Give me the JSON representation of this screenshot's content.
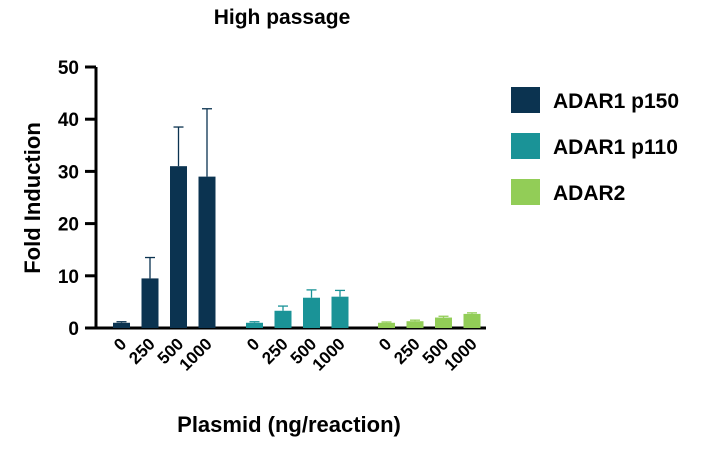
{
  "chart_data": {
    "type": "bar",
    "title": "High passage",
    "xlabel": "Plasmid (ng/reaction)",
    "ylabel": "Fold Induction",
    "ylim": [
      0,
      50
    ],
    "yticks": [
      0,
      10,
      20,
      30,
      40,
      50
    ],
    "categories": [
      "0",
      "250",
      "500",
      "1000"
    ],
    "legend_position": "right",
    "series": [
      {
        "name": "ADAR1 p150",
        "color": "#0b3350",
        "values": [
          1.0,
          9.5,
          31.0,
          29.0
        ],
        "errors": [
          0.2,
          4.0,
          7.5,
          13.0
        ]
      },
      {
        "name": "ADAR1 p110",
        "color": "#1a9397",
        "values": [
          1.0,
          3.3,
          5.8,
          6.0
        ],
        "errors": [
          0.2,
          0.9,
          1.5,
          1.2
        ]
      },
      {
        "name": "ADAR2",
        "color": "#92cd57",
        "values": [
          1.0,
          1.3,
          2.0,
          2.7
        ],
        "errors": [
          0.15,
          0.2,
          0.25,
          0.2
        ]
      }
    ]
  }
}
